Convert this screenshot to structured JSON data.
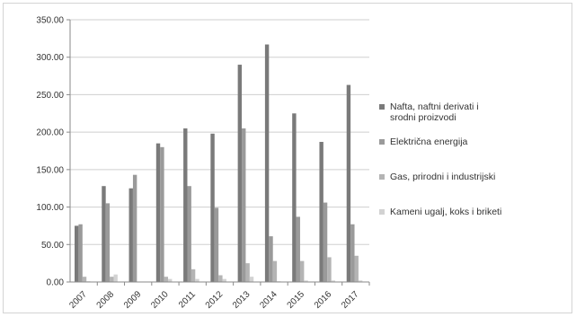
{
  "chart_data": {
    "type": "bar",
    "categories": [
      "2007",
      "2008",
      "2009",
      "2010",
      "2011",
      "2012",
      "2013",
      "2014",
      "2015",
      "2016",
      "2017"
    ],
    "ylim": [
      0,
      350
    ],
    "yticks": [
      "0.00",
      "50.00",
      "100.00",
      "150.00",
      "200.00",
      "250.00",
      "300.00",
      "350.00"
    ],
    "grid": "horizontal",
    "legend_position": "right",
    "series": [
      {
        "name": "Nafta, naftni derivati i srodni proizvodi",
        "legend_lines": [
          "Nafta, naftni derivati i",
          "srodni proizvodi"
        ],
        "color": "#7a7a7a",
        "values": [
          75,
          128,
          125,
          185,
          205,
          198,
          290,
          317,
          225,
          187,
          263
        ]
      },
      {
        "name": "Električna energija",
        "legend_lines": [
          "Električna energija"
        ],
        "color": "#9a9a9a",
        "values": [
          77,
          105,
          143,
          180,
          128,
          99,
          205,
          61,
          87,
          106,
          77
        ]
      },
      {
        "name": "Gas, prirodni i industrijski",
        "legend_lines": [
          "Gas, prirodni i industrijski"
        ],
        "color": "#b4b4b4",
        "values": [
          7,
          7,
          0.5,
          7,
          17,
          9,
          25,
          28,
          28,
          33,
          35
        ]
      },
      {
        "name": "Kameni ugalj, koks i briketi",
        "legend_lines": [
          "Kameni ugalj, koks i briketi"
        ],
        "color": "#d2d2d2",
        "values": [
          1,
          10,
          0.5,
          4,
          4,
          4,
          7,
          1,
          2,
          2,
          2
        ]
      }
    ]
  }
}
